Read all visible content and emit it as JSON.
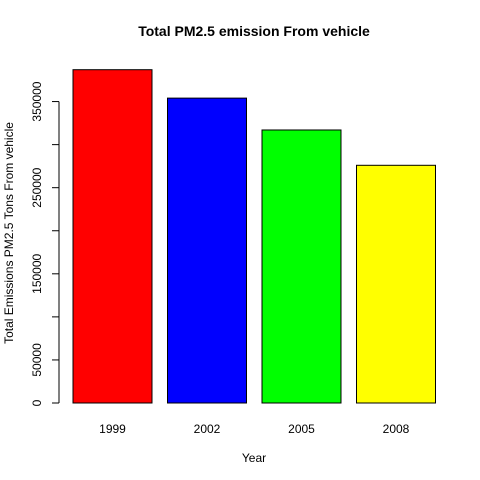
{
  "chart_data": {
    "type": "bar",
    "title": "Total PM2.5 emission From vehicle",
    "xlabel": "Year",
    "ylabel": "Total Emissions PM2.5 Tons From vehicle",
    "categories": [
      "1999",
      "2002",
      "2005",
      "2008"
    ],
    "values": [
      387000,
      354000,
      317000,
      276000
    ],
    "colors": [
      "#FF0000",
      "#0000FF",
      "#00FF00",
      "#FFFF00"
    ],
    "ylim": [
      0,
      400000
    ],
    "y_ticks": [
      0,
      50000,
      100000,
      150000,
      200000,
      250000,
      300000,
      350000
    ],
    "y_tick_labels": [
      "0",
      "50000",
      "",
      "150000",
      "",
      "250000",
      "",
      "350000"
    ],
    "grid": false,
    "legend": "none"
  }
}
